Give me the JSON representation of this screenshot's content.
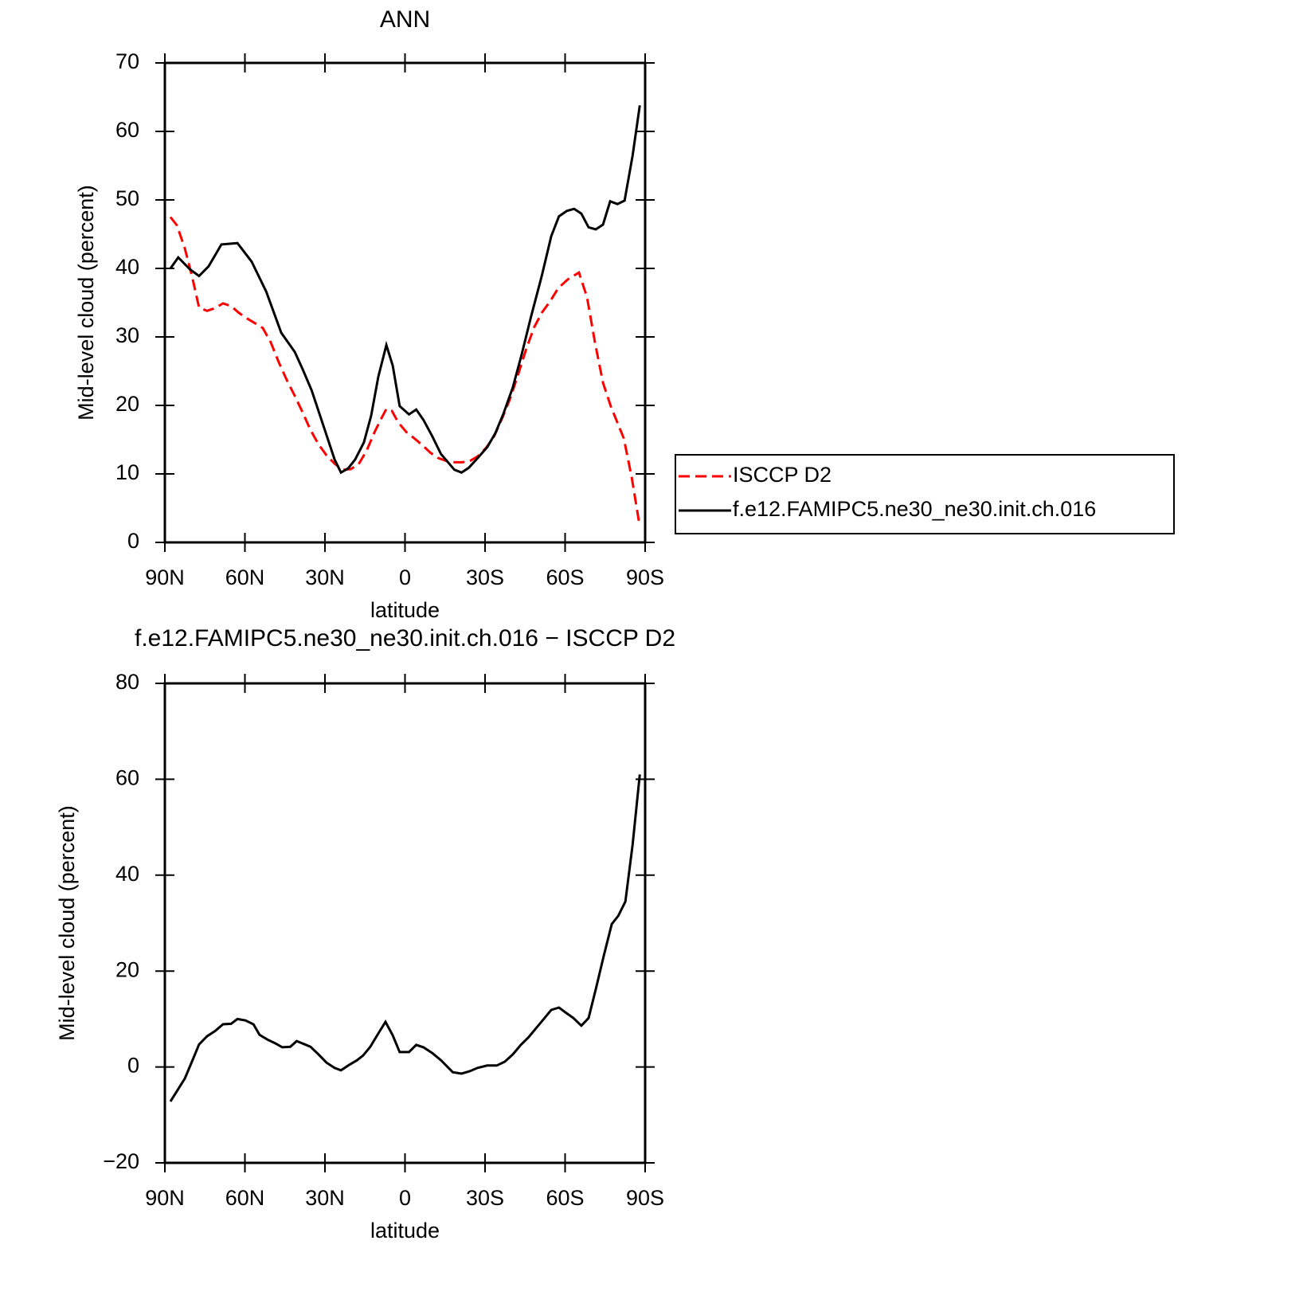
{
  "chart_data": [
    {
      "type": "line",
      "title": "ANN",
      "xlabel": "latitude",
      "ylabel": "Mid-level cloud (percent)",
      "xlim": [
        90,
        -90
      ],
      "xticks": [
        {
          "value": 90,
          "label": "90N"
        },
        {
          "value": 60,
          "label": "60N"
        },
        {
          "value": 30,
          "label": "30N"
        },
        0,
        {
          "value": -30,
          "label": "30S"
        },
        {
          "value": -60,
          "label": "60S"
        },
        {
          "value": -90,
          "label": "90S"
        }
      ],
      "ylim": [
        0,
        70
      ],
      "yticks": [
        0,
        10,
        20,
        30,
        40,
        50,
        60,
        70
      ],
      "legend": "right",
      "series": [
        {
          "name": "ISCCP D2",
          "color": "#ff0000",
          "dash": true,
          "x": [
            87.9,
            85.5,
            82.5,
            79.8,
            77.2,
            74.2,
            71.2,
            68.2,
            65.2,
            62.2,
            59.2,
            56.2,
            53.3,
            50.3,
            47.3,
            44.3,
            41.3,
            38.4,
            35.4,
            32.4,
            29.4,
            26.4,
            23.4,
            20.4,
            17.4,
            14.4,
            11.4,
            9,
            7,
            4.9,
            2.5,
            -0.5,
            -3.5,
            -6.5,
            -9.5,
            -12.5,
            -15.4,
            -18.5,
            -21.5,
            -24.4,
            -27.4,
            -30.4,
            -33.4,
            -36.4,
            -39.4,
            -42.4,
            -45.4,
            -48.4,
            -51.4,
            -54.4,
            -57.4,
            -61,
            -65.2,
            -68.2,
            -71.2,
            -74.2,
            -77.2,
            -82,
            -85,
            -87.7
          ],
          "values": [
            47.5,
            46.3,
            42.9,
            38.8,
            34.3,
            33.8,
            34.2,
            34.9,
            34.5,
            33.5,
            32.7,
            32,
            31.3,
            29.2,
            26.3,
            23.7,
            21.4,
            19,
            16.4,
            14.3,
            12.7,
            11.5,
            10.6,
            10.7,
            11.4,
            13.4,
            16.1,
            18,
            19.5,
            19.2,
            17.5,
            16.1,
            15.2,
            14.2,
            13.1,
            12.3,
            11.9,
            11.7,
            11.7,
            11.9,
            12.6,
            13.8,
            15.5,
            18.1,
            21,
            24.5,
            28.2,
            31.4,
            33.6,
            35.2,
            37.1,
            38.4,
            39.4,
            35.8,
            29.2,
            23.3,
            19.8,
            15.2,
            9.4,
            3
          ]
        },
        {
          "name": "f.e12.FAMIPC5.ne30_ne30.init.ch.016",
          "color": "#000000",
          "dash": false,
          "x": [
            87.9,
            85,
            80.7,
            77.2,
            73.6,
            68.8,
            62.8,
            57.5,
            52,
            46.4,
            41.3,
            38.4,
            35,
            31.5,
            26.4,
            24,
            21.3,
            18.7,
            15.4,
            12.7,
            10,
            7,
            4.6,
            2,
            -1.5,
            -4.2,
            -6.9,
            -10.2,
            -13.5,
            -18.5,
            -21.2,
            -23.9,
            -27.2,
            -30.8,
            -33.8,
            -36.8,
            -40.4,
            -43.7,
            -47.2,
            -51.2,
            -54.8,
            -57.7,
            -60.7,
            -63.4,
            -66.1,
            -68.8,
            -71.5,
            -74.2,
            -76.9,
            -79.6,
            -82.3,
            -85.3,
            -88
          ],
          "values": [
            40,
            41.6,
            39.9,
            38.9,
            40.3,
            43.5,
            43.7,
            41,
            36.6,
            30.6,
            27.8,
            25.3,
            22.2,
            18.1,
            12.1,
            10.2,
            10.8,
            12.1,
            14.6,
            18.5,
            24.2,
            28.8,
            25.8,
            19.9,
            18.7,
            19.4,
            17.9,
            15.5,
            12.9,
            10.6,
            10.2,
            10.9,
            12.3,
            13.9,
            15.9,
            18.7,
            22.6,
            27.4,
            32.9,
            38.8,
            44.7,
            47.6,
            48.4,
            48.7,
            48,
            46,
            45.7,
            46.4,
            49.8,
            49.4,
            49.9,
            56.5,
            63.8
          ]
        }
      ]
    },
    {
      "type": "line",
      "title": "f.e12.FAMIPC5.ne30_ne30.init.ch.016 − ISCCP D2",
      "xlabel": "latitude",
      "ylabel": "Mid-level cloud (percent)",
      "xlim": [
        90,
        -90
      ],
      "xticks": [
        {
          "value": 90,
          "label": "90N"
        },
        {
          "value": 60,
          "label": "60N"
        },
        {
          "value": 30,
          "label": "30N"
        },
        0,
        {
          "value": -30,
          "label": "30S"
        },
        {
          "value": -60,
          "label": "60S"
        },
        {
          "value": -90,
          "label": "90S"
        }
      ],
      "ylim": [
        -20,
        80
      ],
      "yticks": [
        {
          "value": -20,
          "label": "−20"
        },
        0,
        20,
        40,
        60,
        80
      ],
      "series": [
        {
          "color": "#000000",
          "dash": false,
          "x": [
            87.9,
            82.5,
            79.5,
            77.2,
            74.2,
            71.2,
            68.2,
            65.2,
            62.8,
            59.8,
            56.8,
            54.5,
            51.5,
            48.5,
            46,
            43,
            40.6,
            38.4,
            35.4,
            32.4,
            29.4,
            26.4,
            24,
            21,
            18,
            15.7,
            13,
            10,
            7.3,
            4.6,
            2,
            -1.5,
            -4.2,
            -6.9,
            -10.2,
            -13.5,
            -17.9,
            -21.2,
            -24.2,
            -27.2,
            -30.8,
            -34.4,
            -37.4,
            -40.4,
            -43.4,
            -46.3,
            -49.3,
            -52.3,
            -54.8,
            -57.7,
            -60.1,
            -63.1,
            -66.1,
            -68.8,
            -71.5,
            -74.5,
            -77.5,
            -79.9,
            -82.6,
            -85.3,
            -88
          ],
          "values": [
            -7.2,
            -2.4,
            1.6,
            4.7,
            6.4,
            7.5,
            8.9,
            9,
            10,
            9.7,
            8.9,
            6.7,
            5.7,
            4.9,
            4.1,
            4.2,
            5.4,
            4.9,
            4.2,
            2.6,
            0.9,
            -0.2,
            -0.7,
            0.4,
            1.4,
            2.4,
            4.2,
            7,
            9.4,
            6.6,
            3.1,
            3.1,
            4.6,
            4.1,
            2.9,
            1.4,
            -1.1,
            -1.4,
            -0.9,
            -0.2,
            0.3,
            0.3,
            1.1,
            2.6,
            4.6,
            6.2,
            8.2,
            10.2,
            11.9,
            12.4,
            11.4,
            10.2,
            8.6,
            10.2,
            16.2,
            23.2,
            29.8,
            31.5,
            34.5,
            46.4,
            61
          ]
        }
      ]
    }
  ]
}
